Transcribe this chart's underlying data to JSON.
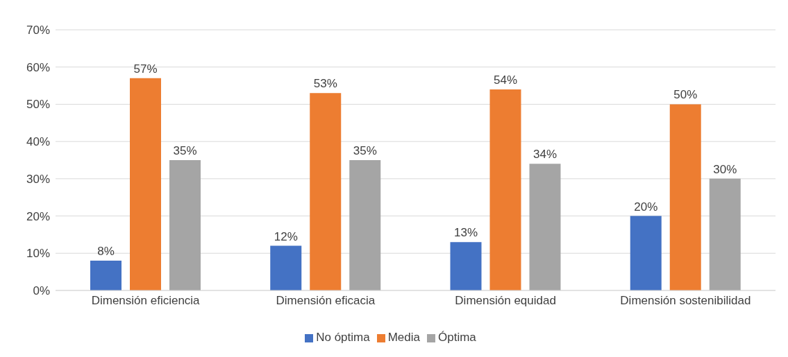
{
  "chart_data": {
    "type": "bar",
    "categories": [
      "Dimensión eficiencia",
      "Dimensión eficacia",
      "Dimensión equidad",
      "Dimensión sostenibilidad"
    ],
    "series": [
      {
        "name": "No óptima",
        "color": "#4472c4",
        "values": [
          8,
          12,
          13,
          20
        ],
        "value_labels": [
          "8%",
          "12%",
          "13%",
          "20%"
        ]
      },
      {
        "name": "Media",
        "color": "#ed7d31",
        "values": [
          57,
          53,
          54,
          50
        ],
        "value_labels": [
          "57%",
          "53%",
          "54%",
          "50%"
        ]
      },
      {
        "name": "Óptima",
        "color": "#a5a5a5",
        "values": [
          35,
          35,
          34,
          30
        ],
        "value_labels": [
          "35%",
          "35%",
          "34%",
          "30%"
        ]
      }
    ],
    "ylim": [
      0,
      70
    ],
    "yticks": [
      {
        "value": 0,
        "label": "0%"
      },
      {
        "value": 10,
        "label": "10%"
      },
      {
        "value": 20,
        "label": "20%"
      },
      {
        "value": 30,
        "label": "30%"
      },
      {
        "value": 40,
        "label": "40%"
      },
      {
        "value": 50,
        "label": "50%"
      },
      {
        "value": 60,
        "label": "60%"
      },
      {
        "value": 70,
        "label": "70%"
      }
    ],
    "grid": "y",
    "legend": "bottom"
  }
}
